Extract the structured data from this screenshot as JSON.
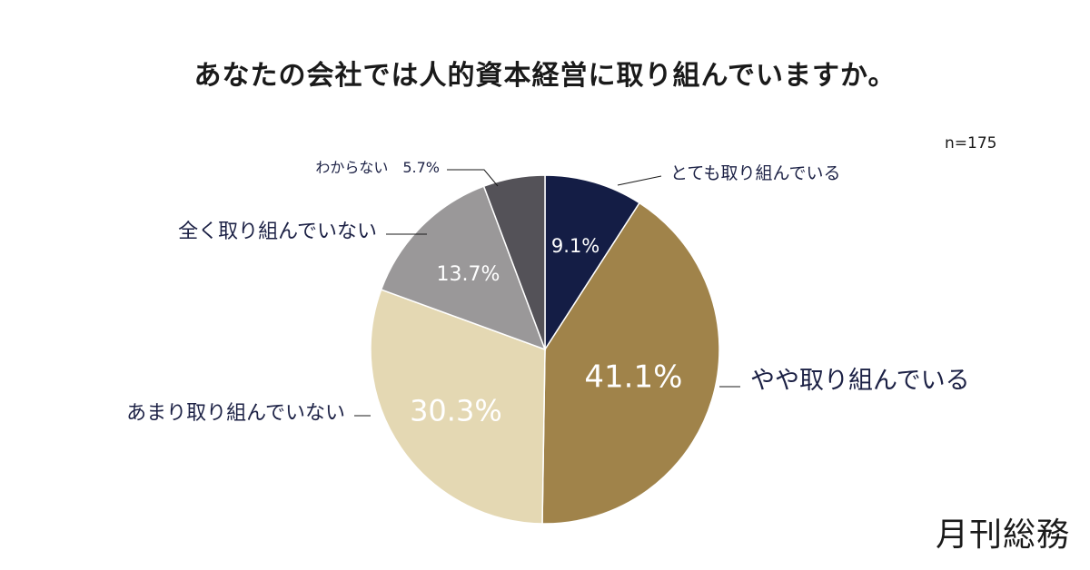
{
  "title": "あなたの会社では人的資本経営に取り組んでいますか。",
  "sample_size": "n=175",
  "brand": "月刊総務",
  "chart_data": {
    "type": "pie",
    "title": "あなたの会社では人的資本経営に取り組んでいますか。",
    "slices": [
      {
        "label": "とても取り組んでいる",
        "value": 9.1,
        "value_label": "9.1%",
        "color": "#141d45",
        "text_color": "#ffffff"
      },
      {
        "label": "やや取り組んでいる",
        "value": 41.1,
        "value_label": "41.1%",
        "color": "#a0834a",
        "text_color": "#ffffff"
      },
      {
        "label": "あまり取り組んでいない",
        "value": 30.3,
        "value_label": "30.3%",
        "color": "#e4d8b3",
        "text_color": "#ffffff"
      },
      {
        "label": "全く取り組んでいない",
        "value": 13.7,
        "value_label": "13.7%",
        "color": "#9a9899",
        "text_color": "#ffffff"
      },
      {
        "label": "わからない",
        "value": 5.7,
        "value_label": "5.7%",
        "color": "#545258",
        "text_color": "#ffffff"
      }
    ],
    "start": "top",
    "direction": "clockwise",
    "legend": "none"
  }
}
